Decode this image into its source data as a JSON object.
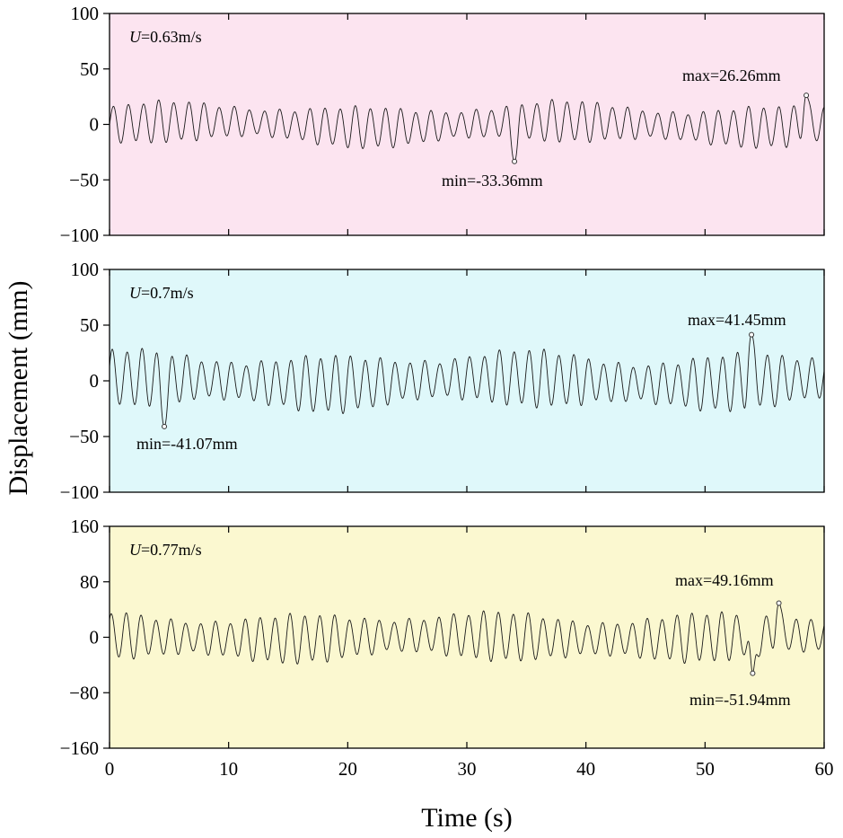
{
  "chart_data": {
    "type": "line",
    "xlabel": "Time  (s)",
    "ylabel": "Displacement  (mm)",
    "xlim": [
      0,
      60
    ],
    "xticks": [
      0,
      10,
      20,
      30,
      40,
      50,
      60
    ],
    "xtick_labels": [
      "0",
      "10",
      "20",
      "30",
      "40",
      "50",
      "60"
    ],
    "panels": [
      {
        "id": "u063",
        "velocity_label": "=0.63m/s",
        "velocity_symbol": "U",
        "background": "#fce4f0",
        "ylim": [
          -100,
          100
        ],
        "yticks": [
          -100,
          -50,
          0,
          50,
          100
        ],
        "ytick_labels": [
          "−100",
          "−50",
          "0",
          "50",
          "100"
        ],
        "period_s": 1.27,
        "base_amplitude_mm": 19,
        "max": {
          "t": 58.5,
          "value": 26.26,
          "label": "max=26.26mm"
        },
        "min": {
          "t": 34.0,
          "value": -33.36,
          "label": "min=-33.36mm"
        }
      },
      {
        "id": "u070",
        "velocity_label": "=0.7m/s",
        "velocity_symbol": "U",
        "background": "#dff8fa",
        "ylim": [
          -100,
          100
        ],
        "yticks": [
          -100,
          -50,
          0,
          50,
          100
        ],
        "ytick_labels": [
          "−100",
          "−50",
          "0",
          "50",
          "100"
        ],
        "period_s": 1.25,
        "base_amplitude_mm": 26,
        "max": {
          "t": 53.9,
          "value": 41.45,
          "label": "max=41.45mm"
        },
        "min": {
          "t": 4.6,
          "value": -41.07,
          "label": "min=-41.07mm"
        }
      },
      {
        "id": "u077",
        "velocity_label": "=0.77m/s",
        "velocity_symbol": "U",
        "background": "#fbf8d0",
        "ylim": [
          -160,
          160
        ],
        "yticks": [
          -160,
          -80,
          0,
          80,
          160
        ],
        "ytick_labels": [
          "−160",
          "−80",
          "0",
          "80",
          "160"
        ],
        "period_s": 1.25,
        "base_amplitude_mm": 36,
        "max": {
          "t": 56.2,
          "value": 49.16,
          "label": "max=49.16mm"
        },
        "min": {
          "t": 54.0,
          "value": -51.94,
          "label": "min=-51.94mm"
        }
      }
    ]
  }
}
